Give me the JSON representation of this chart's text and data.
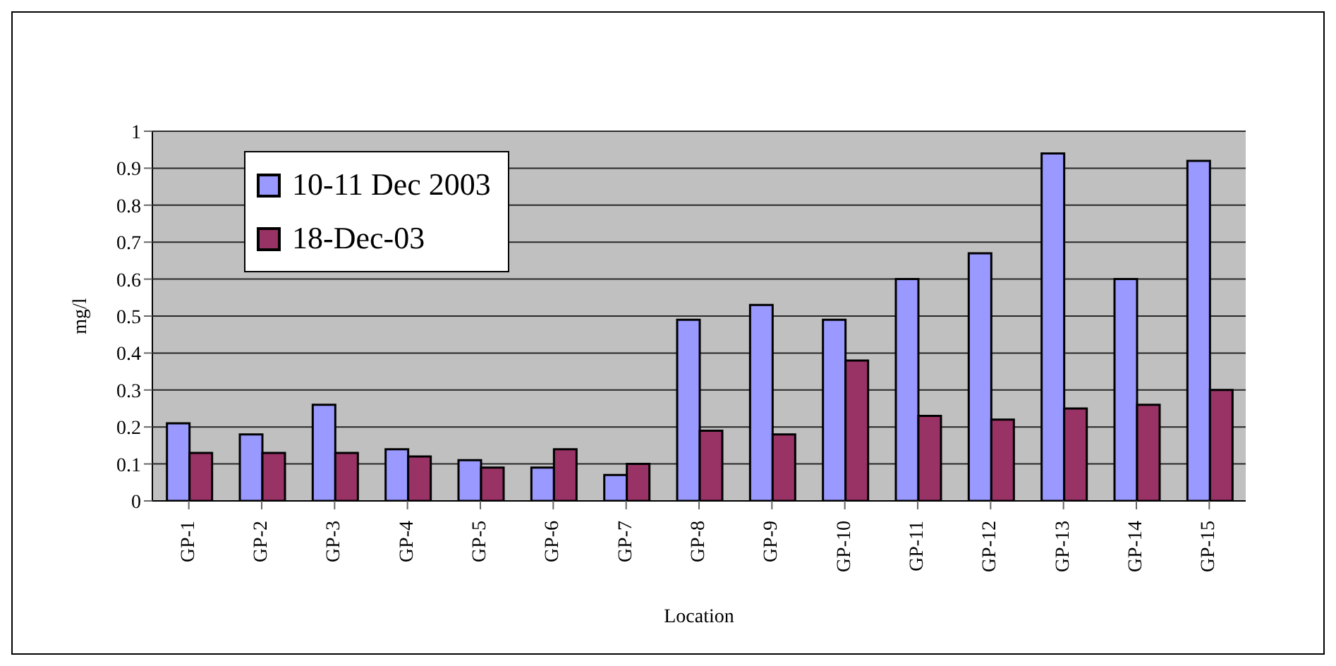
{
  "chart_data": {
    "type": "bar",
    "xlabel": "Location",
    "ylabel": "mg/l",
    "categories": [
      "GP-1",
      "GP-2",
      "GP-3",
      "GP-4",
      "GP-5",
      "GP-6",
      "GP-7",
      "GP-8",
      "GP-9",
      "GP-10",
      "GP-11",
      "GP-12",
      "GP-13",
      "GP-14",
      "GP-15"
    ],
    "series": [
      {
        "name": "10-11 Dec 2003",
        "color": "#9999ff",
        "values": [
          0.21,
          0.18,
          0.26,
          0.14,
          0.11,
          0.09,
          0.07,
          0.49,
          0.53,
          0.49,
          0.6,
          0.67,
          0.94,
          0.6,
          0.92
        ]
      },
      {
        "name": "18-Dec-03",
        "color": "#993366",
        "values": [
          0.13,
          0.13,
          0.13,
          0.12,
          0.09,
          0.14,
          0.1,
          0.19,
          0.18,
          0.38,
          0.23,
          0.22,
          0.25,
          0.26,
          0.3
        ]
      }
    ],
    "ylim": [
      0,
      1
    ],
    "yticks": [
      0,
      0.1,
      0.2,
      0.3,
      0.4,
      0.5,
      0.6,
      0.7,
      0.8,
      0.9,
      1
    ],
    "grid": "y",
    "legend": "top left"
  }
}
